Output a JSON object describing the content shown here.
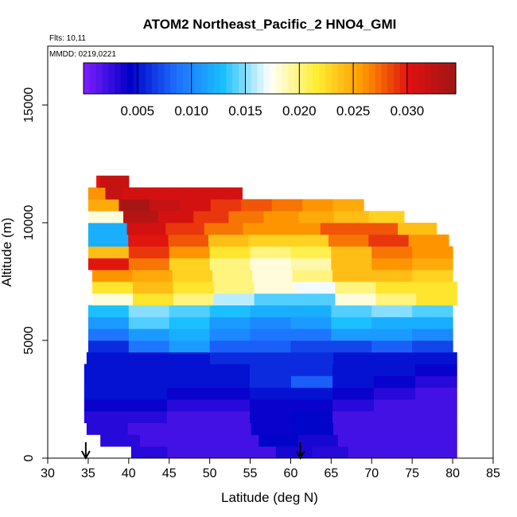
{
  "chart_data": {
    "type": "heatmap",
    "title": "ATOM2 Northeast_Pacific_2 HNO4_GMI",
    "flights_label": "Flts: 10,11",
    "dates_label": "MMDD: 0219,0221",
    "xlabel": "Latitude (deg N)",
    "ylabel": "Altitude (m)",
    "xlim": [
      30,
      85
    ],
    "ylim": [
      0,
      17500
    ],
    "x_ticks": [
      "30",
      "35",
      "40",
      "45",
      "50",
      "55",
      "60",
      "65",
      "70",
      "75",
      "80",
      "85"
    ],
    "y_ticks": [
      "0",
      "5000",
      "10000",
      "15000"
    ],
    "colorbar": {
      "range": [
        0.0,
        0.0345
      ],
      "ticks": [
        "0.005",
        "0.010",
        "0.015",
        "0.020",
        "0.025",
        "0.030"
      ],
      "colors": [
        "#7f1fff",
        "#0000c8",
        "#1e6fff",
        "#19bfff",
        "#ffffff",
        "#ffee33",
        "#ff9900",
        "#e01010",
        "#a01616"
      ]
    },
    "curtain": {
      "altitude_bands_m": [
        {
          "bottom": 0,
          "top": 500,
          "lat_start": 40.3,
          "lat_end": 80.5,
          "values": [
            0.003,
            0.002,
            0.002,
            0.002,
            0.0035,
            0.003,
            0.002,
            0.002,
            0.002
          ]
        },
        {
          "bottom": 500,
          "top": 1000,
          "lat_start": 36.5,
          "lat_end": 80.5,
          "values": [
            0.003,
            0.002,
            0.002,
            0.002,
            0.0045,
            0.0035,
            0.002,
            0.002,
            0.002
          ]
        },
        {
          "bottom": 1000,
          "top": 1500,
          "lat_start": 34.8,
          "lat_end": 80.5,
          "values": [
            0.003,
            0.002,
            0.002,
            0.002,
            0.004,
            0.0045,
            0.002,
            0.002,
            0.002
          ]
        },
        {
          "bottom": 1500,
          "top": 2000,
          "lat_start": 34.5,
          "lat_end": 80.5,
          "values": [
            0.003,
            0.003,
            0.002,
            0.002,
            0.004,
            0.0045,
            0.002,
            0.002,
            0.002
          ]
        },
        {
          "bottom": 2000,
          "top": 2500,
          "lat_start": 34.5,
          "lat_end": 80.5,
          "values": [
            0.004,
            0.004,
            0.003,
            0.003,
            0.004,
            0.004,
            0.003,
            0.002,
            0.002
          ]
        },
        {
          "bottom": 2500,
          "top": 3000,
          "lat_start": 34.5,
          "lat_end": 80.5,
          "values": [
            0.005,
            0.005,
            0.004,
            0.004,
            0.005,
            0.005,
            0.004,
            0.003,
            0.002
          ]
        },
        {
          "bottom": 3000,
          "top": 3500,
          "lat_start": 34.5,
          "lat_end": 80.5,
          "values": [
            0.005,
            0.005,
            0.005,
            0.005,
            0.006,
            0.008,
            0.005,
            0.004,
            0.003
          ]
        },
        {
          "bottom": 3500,
          "top": 4000,
          "lat_start": 34.5,
          "lat_end": 80.5,
          "values": [
            0.005,
            0.005,
            0.005,
            0.005,
            0.006,
            0.006,
            0.005,
            0.005,
            0.004
          ]
        },
        {
          "bottom": 4000,
          "top": 4500,
          "lat_start": 34.8,
          "lat_end": 80.5,
          "values": [
            0.005,
            0.005,
            0.005,
            0.006,
            0.006,
            0.006,
            0.005,
            0.005,
            0.005
          ]
        },
        {
          "bottom": 4500,
          "top": 5000,
          "lat_start": 35.0,
          "lat_end": 80.0,
          "values": [
            0.006,
            0.009,
            0.011,
            0.008,
            0.008,
            0.007,
            0.007,
            0.008,
            0.007
          ]
        },
        {
          "bottom": 5000,
          "top": 5500,
          "lat_start": 35.0,
          "lat_end": 80.0,
          "values": [
            0.009,
            0.011,
            0.012,
            0.01,
            0.009,
            0.009,
            0.011,
            0.011,
            0.01
          ]
        },
        {
          "bottom": 5500,
          "top": 6000,
          "lat_start": 35.0,
          "lat_end": 80.0,
          "values": [
            0.011,
            0.014,
            0.013,
            0.011,
            0.01,
            0.011,
            0.013,
            0.012,
            0.012
          ]
        },
        {
          "bottom": 6000,
          "top": 6500,
          "lat_start": 35.0,
          "lat_end": 80.0,
          "values": [
            0.013,
            0.015,
            0.014,
            0.013,
            0.012,
            0.012,
            0.014,
            0.015,
            0.014
          ]
        },
        {
          "bottom": 6500,
          "top": 7000,
          "lat_start": 35.5,
          "lat_end": 80.5,
          "values": [
            0.018,
            0.022,
            0.02,
            0.016,
            0.014,
            0.014,
            0.018,
            0.02,
            0.022
          ]
        },
        {
          "bottom": 7000,
          "top": 7500,
          "lat_start": 35.5,
          "lat_end": 80.5,
          "values": [
            0.022,
            0.024,
            0.022,
            0.02,
            0.018,
            0.017,
            0.02,
            0.022,
            0.022
          ]
        },
        {
          "bottom": 7500,
          "top": 8000,
          "lat_start": 35.5,
          "lat_end": 80.0,
          "values": [
            0.026,
            0.025,
            0.023,
            0.02,
            0.018,
            0.02,
            0.024,
            0.024,
            0.023
          ]
        },
        {
          "bottom": 8000,
          "top": 8500,
          "lat_start": 35.0,
          "lat_end": 80.0,
          "values": [
            0.03,
            0.027,
            0.023,
            0.02,
            0.018,
            0.019,
            0.024,
            0.026,
            0.025
          ]
        },
        {
          "bottom": 8500,
          "top": 9000,
          "lat_start": 35.0,
          "lat_end": 80.0,
          "values": [
            0.024,
            0.029,
            0.026,
            0.022,
            0.02,
            0.021,
            0.024,
            0.027,
            0.026
          ]
        },
        {
          "bottom": 9000,
          "top": 9500,
          "lat_start": 35.0,
          "lat_end": 79.5,
          "values": [
            0.012,
            0.03,
            0.028,
            0.024,
            0.023,
            0.023,
            0.027,
            0.029,
            0.026
          ]
        },
        {
          "bottom": 9500,
          "top": 10000,
          "lat_start": 35.0,
          "lat_end": 78.0,
          "values": [
            0.012,
            0.031,
            0.029,
            0.027,
            0.026,
            0.026,
            0.028,
            0.028,
            0.024
          ]
        },
        {
          "bottom": 10000,
          "top": 10500,
          "lat_start": 35.0,
          "lat_end": 74.0,
          "values": [
            0.018,
            0.033,
            0.031,
            0.029,
            0.027,
            0.026,
            0.025,
            0.024,
            0.023
          ]
        },
        {
          "bottom": 10500,
          "top": 11000,
          "lat_start": 35.0,
          "lat_end": 69.0,
          "values": [
            0.025,
            0.034,
            0.032,
            0.031,
            0.029,
            0.028,
            0.027,
            0.026,
            0.025
          ]
        },
        {
          "bottom": 11000,
          "top": 11500,
          "lat_start": 35.0,
          "lat_end": 54.0,
          "values": [
            0.026,
            0.032,
            0.031,
            0.031,
            0.031,
            0.031,
            0.031,
            0.031,
            0.031
          ]
        },
        {
          "bottom": 11500,
          "top": 12000,
          "lat_start": 36.0,
          "lat_end": 40.0,
          "values": [
            0.03,
            0.032,
            0.032,
            0.032,
            0.032,
            0.032,
            0.032,
            0.032,
            0.032
          ]
        }
      ]
    },
    "arrows_lat": [
      34.7,
      61.2
    ]
  }
}
